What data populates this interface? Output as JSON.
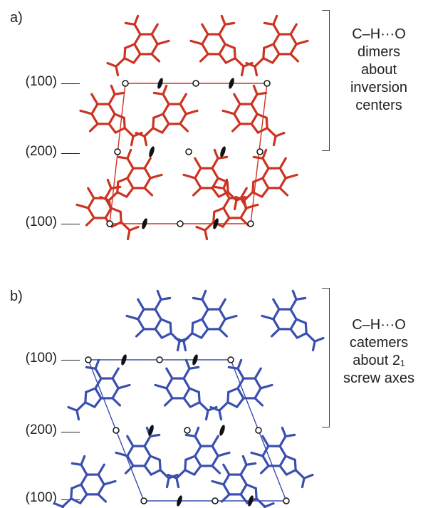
{
  "panels": [
    {
      "label": "a)",
      "color": "#cc3322",
      "plane_labels": [
        "(100)",
        "(200)",
        "(100)"
      ],
      "note_lines": [
        "C–H···O",
        "dimers",
        "about",
        "inversion",
        "centers"
      ]
    },
    {
      "label": "b)",
      "color": "#3a4fae",
      "plane_labels": [
        "(100)",
        "(200)",
        "(100)"
      ],
      "note_lines": [
        "C–H···O",
        "catemers",
        "about 2₁",
        "screw axes"
      ]
    }
  ]
}
